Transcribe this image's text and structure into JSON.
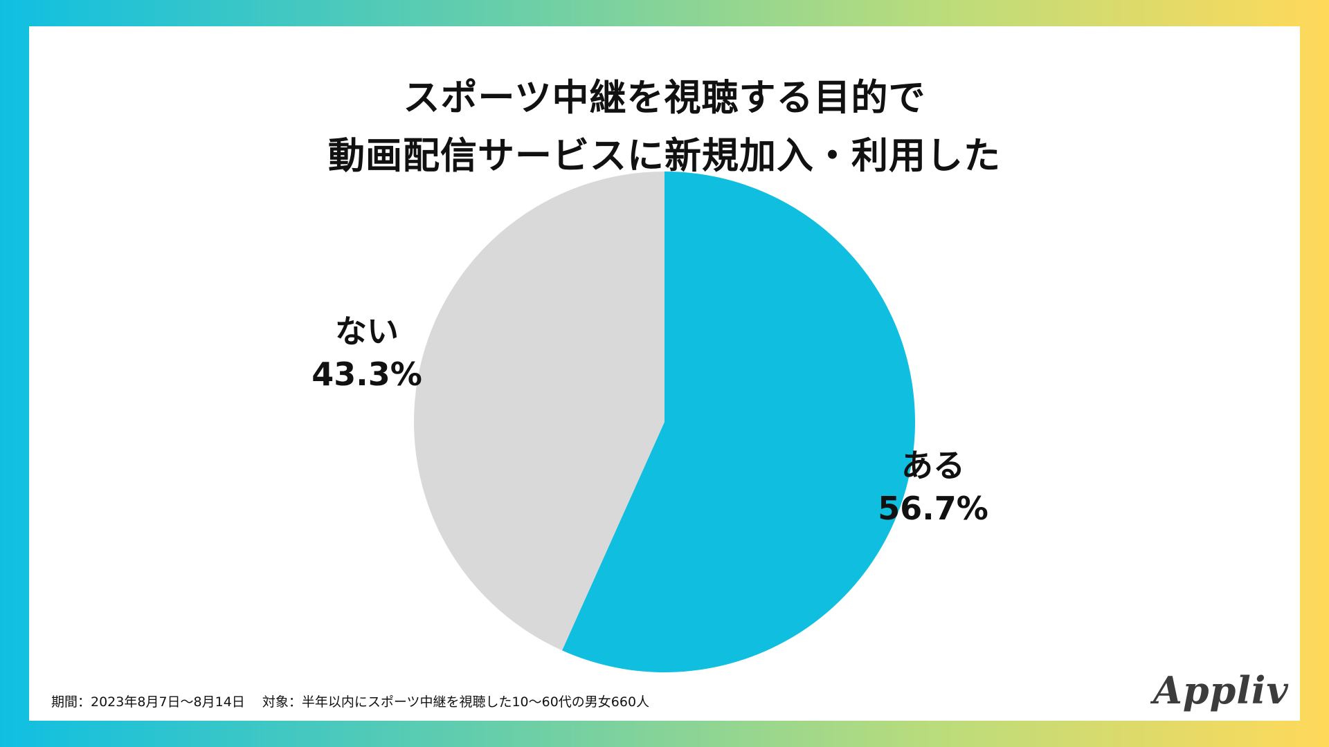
{
  "chart_data": {
    "type": "pie",
    "title": "スポーツ中継を視聴する目的で 動画配信サービスに新規加入・利用した",
    "title_lines": [
      "スポーツ中継を視聴する目的で",
      "動画配信サービスに新規加入・利用した"
    ],
    "slices": [
      {
        "label": "ある",
        "value": 56.7,
        "value_label": "56.7%",
        "color": "#10bfdf"
      },
      {
        "label": "ない",
        "value": 43.3,
        "value_label": "43.3%",
        "color": "#d9d9d9"
      }
    ],
    "start_angle": "12 o'clock, clockwise"
  },
  "footnote": "期間：2023年8月7日〜8月14日　 対象：半年以内にスポーツ中継を視聴した10〜60代の男女660人",
  "logo": "Appliv"
}
